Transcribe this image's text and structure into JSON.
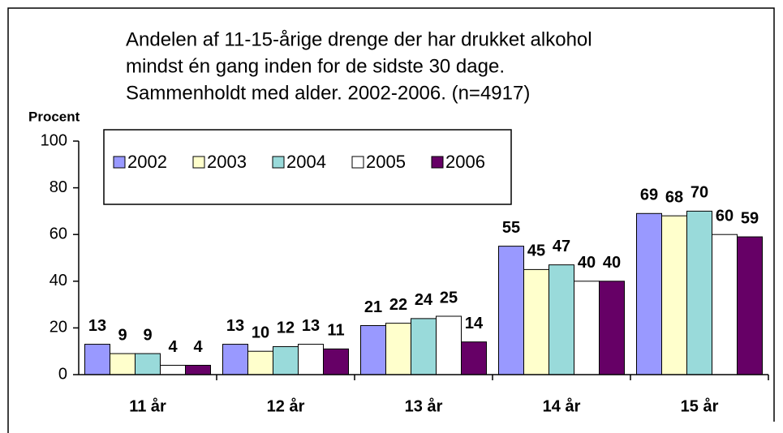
{
  "chart_data": {
    "type": "bar",
    "title": [
      "Andelen af 11-15-årige drenge der har drukket alkohol",
      "mindst én gang inden for de sidste 30 dage.",
      "Sammenholdt med alder. 2002-2006. (n=4917)"
    ],
    "y_label": "Procent",
    "categories": [
      "11 år",
      "12 år",
      "13 år",
      "14 år",
      "15 år"
    ],
    "series": [
      {
        "name": "2002",
        "color": "#9999ff",
        "values": [
          13,
          13,
          21,
          55,
          69
        ]
      },
      {
        "name": "2003",
        "color": "#ffffcc",
        "values": [
          9,
          10,
          22,
          45,
          68
        ]
      },
      {
        "name": "2004",
        "color": "#99dada",
        "values": [
          9,
          12,
          24,
          47,
          70
        ]
      },
      {
        "name": "2005",
        "color": "#ffffff",
        "values": [
          4,
          13,
          25,
          40,
          60
        ]
      },
      {
        "name": "2006",
        "color": "#660066",
        "values": [
          4,
          11,
          14,
          40,
          59
        ]
      }
    ],
    "ylim": [
      0,
      100
    ],
    "yticks": [
      0,
      20,
      40,
      60,
      80,
      100
    ],
    "legend": "top-left"
  }
}
